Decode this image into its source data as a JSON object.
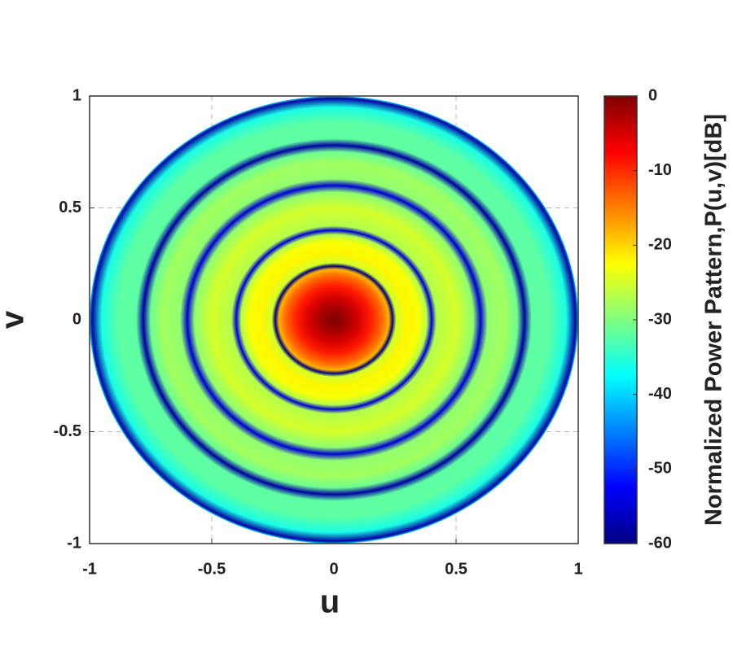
{
  "chart_data": {
    "type": "radial-heatmap",
    "xlabel": "u",
    "ylabel": "v",
    "colorbar_label": "Normalized Power Pattern,P(u,v)[dB]",
    "colormap": "jet",
    "clim": [
      -60,
      0
    ],
    "cticks": [
      0,
      -10,
      -20,
      -30,
      -40,
      -50,
      -60
    ],
    "xlim": [
      -1,
      1
    ],
    "ylim": [
      -1,
      1
    ],
    "xticks": [
      -1,
      -0.5,
      0,
      0.5,
      1
    ],
    "yticks": [
      -1,
      -0.5,
      0,
      0.5,
      1
    ],
    "grid": true,
    "r": [
      0,
      0.05,
      0.1,
      0.15,
      0.2,
      0.225,
      0.24,
      0.255,
      0.3,
      0.35,
      0.38,
      0.4,
      0.42,
      0.5,
      0.57,
      0.6,
      0.63,
      0.7,
      0.75,
      0.78,
      0.81,
      0.88,
      0.95,
      0.99,
      1
    ],
    "values": [
      0,
      -2,
      -5,
      -9,
      -14,
      -18,
      -60,
      -25,
      -22,
      -23,
      -27,
      -55,
      -27,
      -25,
      -29,
      -55,
      -29,
      -28,
      -31,
      -58,
      -32,
      -32,
      -36,
      -58,
      -40
    ]
  }
}
